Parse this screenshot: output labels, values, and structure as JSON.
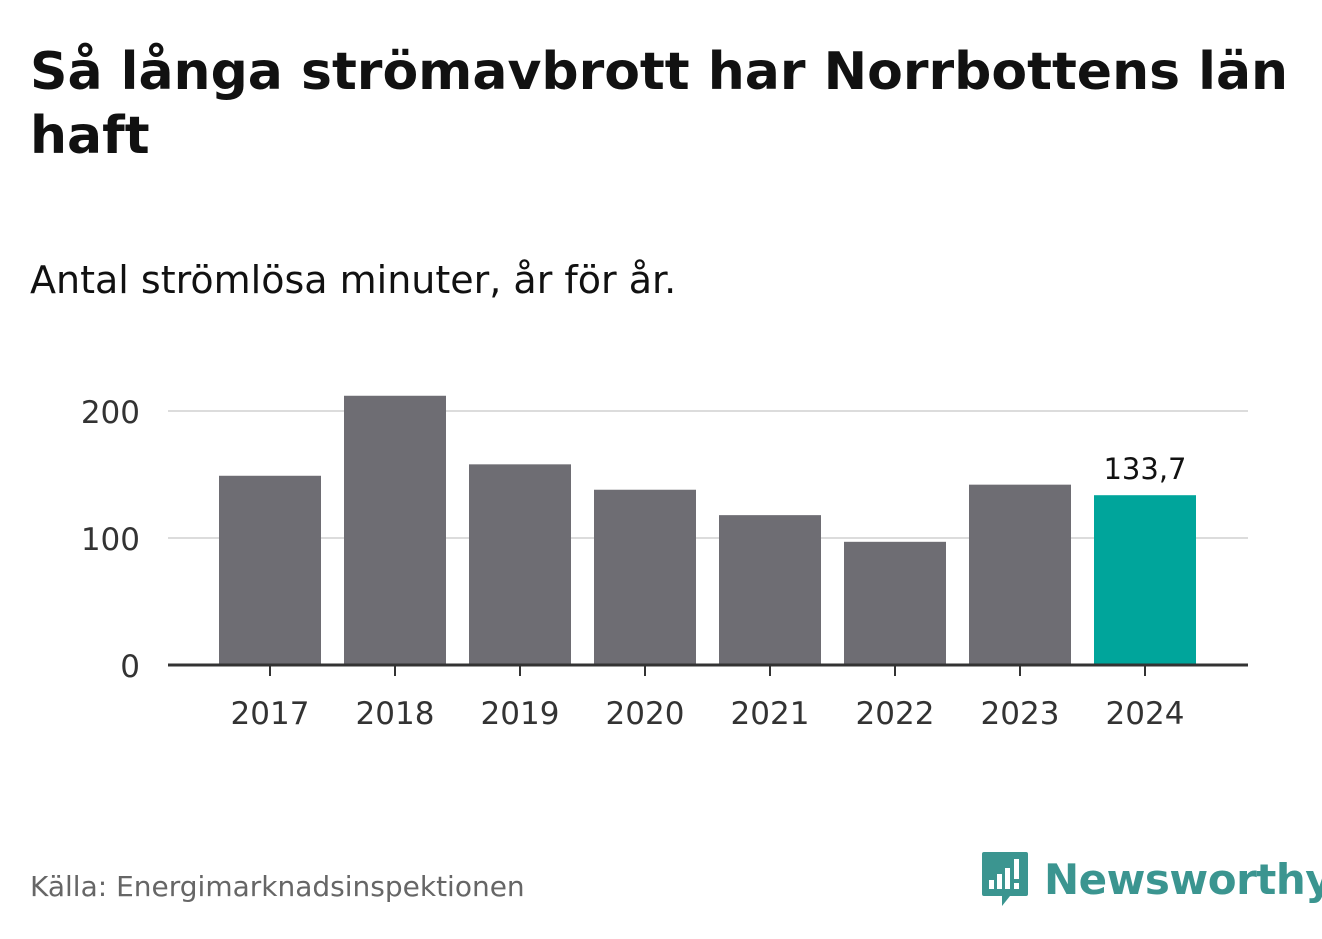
{
  "chart_data": {
    "type": "bar",
    "title": "Så långa strömavbrott har Norrbottens län haft",
    "subtitle": "Antal strömlösa minuter, år för år.",
    "categories": [
      "2017",
      "2018",
      "2019",
      "2020",
      "2021",
      "2022",
      "2023",
      "2024"
    ],
    "values": [
      149,
      212,
      158,
      138,
      118,
      97,
      142,
      133.7
    ],
    "highlight_index": 7,
    "highlight_label": "133,7",
    "yticks": [
      0,
      100,
      200
    ],
    "ylim": [
      0,
      200
    ],
    "xlabel": "",
    "ylabel": "",
    "colors": {
      "bar": "#6e6d73",
      "highlight": "#00a59b",
      "grid": "#dcdcdc",
      "axis": "#333333"
    }
  },
  "footer": {
    "source": "Källa: Energimarknadsinspektionen",
    "brand": "Newsworthy",
    "brand_icon": "newsworthy-logo-icon"
  }
}
